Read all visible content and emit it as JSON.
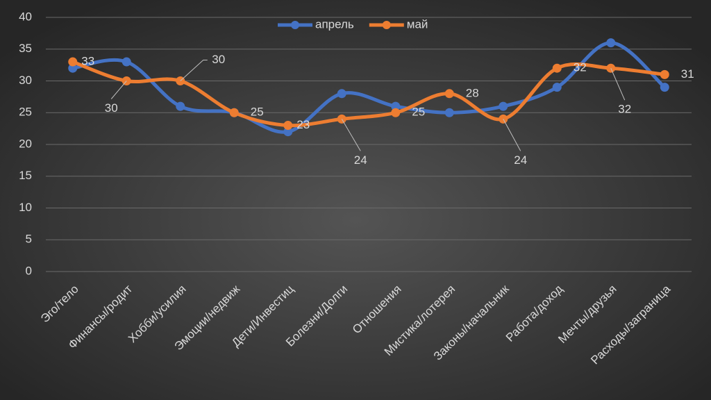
{
  "chart_data": {
    "type": "line",
    "categories": [
      "Эго/тело",
      "Финансы/родит",
      "Хобби/усилия",
      "Эмоции/недвиж",
      "Дети/Инвестиц",
      "Болезни/Долги",
      "Отношения",
      "Мистика/лотерея",
      "Законы/начальник",
      "Работа/доход",
      "Мечты/друзья",
      "Расходы/заграница"
    ],
    "series": [
      {
        "name": "апрель",
        "color": "#4472c4",
        "values": [
          32,
          33,
          26,
          25,
          22,
          28,
          26,
          25,
          26,
          29,
          36,
          29
        ]
      },
      {
        "name": "май",
        "color": "#ed7d31",
        "values": [
          33,
          30,
          30,
          25,
          23,
          24,
          25,
          28,
          24,
          32,
          32,
          31
        ],
        "data_labels": true
      }
    ],
    "ylim": [
      0,
      40
    ],
    "yticks": [
      0,
      5,
      10,
      15,
      20,
      25,
      30,
      35,
      40
    ],
    "grid": true,
    "legend": "top",
    "smooth": true
  }
}
